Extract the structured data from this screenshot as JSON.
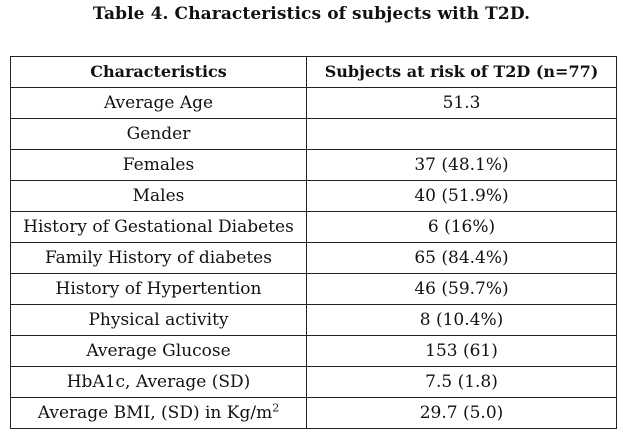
{
  "caption": "Table 4. Characteristics of subjects with T2D.",
  "table": {
    "headers": [
      "Characteristics",
      "Subjects at risk of T2D (n=77)"
    ],
    "rows": [
      {
        "label": "Average Age",
        "value": "51.3"
      },
      {
        "label": "Gender",
        "value": ""
      },
      {
        "label": "Females",
        "value": "37 (48.1%)"
      },
      {
        "label": "Males",
        "value": "40 (51.9%)"
      },
      {
        "label": "History of Gestational Diabetes",
        "value": "6 (16%)"
      },
      {
        "label": "Family History of diabetes",
        "value": "65 (84.4%)"
      },
      {
        "label": "History of Hypertention",
        "value": "46 (59.7%)"
      },
      {
        "label": "Physical activity",
        "value": "8 (10.4%)"
      },
      {
        "label": "Average Glucose",
        "value": "153 (61)"
      },
      {
        "label": "HbA1c, Average (SD)",
        "value": "7.5 (1.8)"
      },
      {
        "label": "Average BMI, (SD) in Kg/m",
        "label_sup": "2",
        "value": "29.7 (5.0)"
      }
    ]
  }
}
